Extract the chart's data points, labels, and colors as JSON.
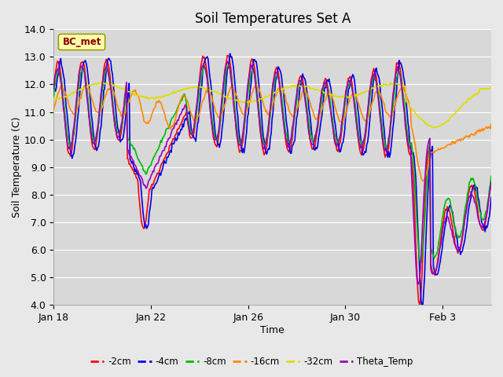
{
  "title": "Soil Temperatures Set A",
  "xlabel": "Time",
  "ylabel": "Soil Temperature (C)",
  "ylim": [
    4.0,
    14.0
  ],
  "yticks": [
    4.0,
    5.0,
    6.0,
    7.0,
    8.0,
    9.0,
    10.0,
    11.0,
    12.0,
    13.0,
    14.0
  ],
  "xtick_labels": [
    "Jan 18",
    "Jan 22",
    "Jan 26",
    "Jan 30",
    "Feb 3"
  ],
  "xtick_days": [
    0,
    4,
    8,
    12,
    16
  ],
  "xlim": [
    0,
    18
  ],
  "legend_label": "BC_met",
  "series_colors": {
    "-2cm": "#ff0000",
    "-4cm": "#0000ee",
    "-8cm": "#00bb00",
    "-16cm": "#ff8800",
    "-32cm": "#dddd00",
    "Theta_Temp": "#9900bb"
  },
  "fig_bg_color": "#e8e8e8",
  "plot_bg_color": "#d8d8d8",
  "grid_color": "#ffffff",
  "title_fontsize": 12,
  "axis_label_fontsize": 9,
  "tick_fontsize": 9,
  "line_width": 1.2
}
